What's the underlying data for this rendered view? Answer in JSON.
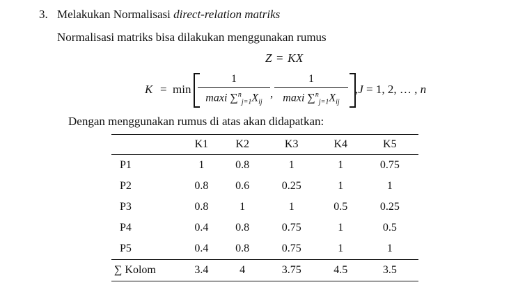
{
  "section": {
    "number": "3.",
    "title_plain": "Melakukan Normalisasi ",
    "title_italic": "direct-relation matriks",
    "intro": "Normalisasi matriks bisa dilakukan menggunakan rumus",
    "lead": "Dengan menggunakan rumus di atas akan didapatkan:"
  },
  "formula": {
    "z_left": "Z",
    "z_eq": "=",
    "z_right": "KX",
    "k_label": "K",
    "k_eq": "=",
    "k_min": "min",
    "frac1_num": "1",
    "frac1_den_pre": "maxi ∑",
    "frac1_den_sup": "n",
    "frac1_den_sub": "j=1",
    "frac1_den_x": "X",
    "frac1_den_xsub": "ij",
    "frac2_num": "1",
    "frac2_den_pre": "maxi ∑",
    "frac2_den_sup": "n",
    "frac2_den_sub": "j=1",
    "frac2_den_x": "X",
    "frac2_den_xsub": "ij",
    "comma": ",",
    "tail_j": "J",
    "tail_rest": " = 1, 2, … , ",
    "tail_n": "n"
  },
  "table": {
    "headers": [
      "",
      "K1",
      "K2",
      "K3",
      "K4",
      "K5"
    ],
    "rows": [
      [
        "P1",
        "1",
        "0.8",
        "1",
        "1",
        "0.75"
      ],
      [
        "P2",
        "0.8",
        "0.6",
        "0.25",
        "1",
        "1"
      ],
      [
        "P3",
        "0.8",
        "1",
        "1",
        "0.5",
        "0.25"
      ],
      [
        "P4",
        "0.4",
        "0.8",
        "0.75",
        "1",
        "0.5"
      ],
      [
        "P5",
        "0.4",
        "0.8",
        "0.75",
        "1",
        "1"
      ]
    ],
    "sum_row": [
      "∑ Kolom",
      "3.4",
      "4",
      "3.75",
      "4.5",
      "3.5"
    ]
  }
}
